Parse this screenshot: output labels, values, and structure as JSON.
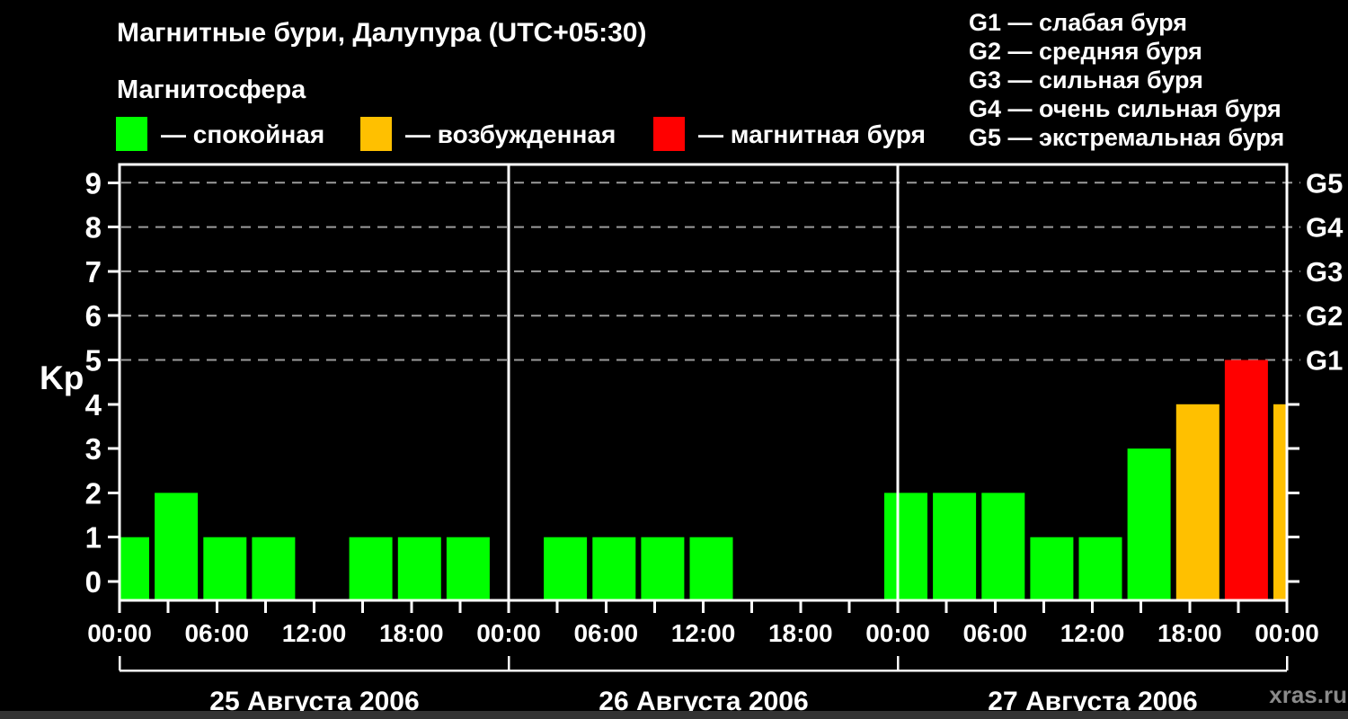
{
  "header": {
    "title": "Магнитные бури, Далупура (UTC+05:30)",
    "subtitle": "Магнитосфера"
  },
  "legend": {
    "items": [
      {
        "label": "— спокойная",
        "color": "#00ff00"
      },
      {
        "label": "— возбужденная",
        "color": "#ffc000"
      },
      {
        "label": "— магнитная буря",
        "color": "#ff0000"
      }
    ]
  },
  "g_scale_legend": [
    "G1 — слабая буря",
    "G2 — средняя буря",
    "G3 — сильная буря",
    "G4 — очень сильная буря",
    "G5 — экстремальная буря"
  ],
  "watermark": "xras.ru",
  "chart_data": {
    "type": "bar",
    "title": "Магнитные бури, Далупура (UTC+05:30)",
    "ylabel": "Kp",
    "ylim": [
      0,
      9
    ],
    "yticks": [
      0,
      1,
      2,
      3,
      4,
      5,
      6,
      7,
      8,
      9
    ],
    "slot_hours": 3,
    "x_tick_label_cycle": [
      "00:00",
      "06:00",
      "12:00",
      "18:00"
    ],
    "right_axis": {
      "at_kp": [
        5,
        6,
        7,
        8,
        9
      ],
      "labels": [
        "G1",
        "G2",
        "G3",
        "G4",
        "G5"
      ]
    },
    "grid": {
      "dashed_at_kp": [
        5,
        6,
        7,
        8,
        9
      ]
    },
    "days": [
      {
        "date": "25 Августа 2006",
        "kp_3h": [
          2,
          1,
          1,
          0,
          1,
          1,
          1,
          0
        ]
      },
      {
        "date": "26 Августа 2006",
        "kp_3h": [
          1,
          1,
          1,
          1,
          0,
          0,
          0,
          2
        ]
      },
      {
        "date": "27 Августа 2006",
        "kp_3h": [
          2,
          2,
          1,
          1,
          3,
          4,
          5,
          4
        ]
      }
    ],
    "leading_partial_bar_kp": 1,
    "colors": {
      "quiet": "#00ff00",
      "excited": "#ffc000",
      "storm": "#ff0000",
      "grid": "#9c9c9c",
      "axis": "#ffffff"
    },
    "color_rule": {
      "quiet_max_kp": 3,
      "excited_kp": 4,
      "storm_min_kp": 5
    }
  }
}
